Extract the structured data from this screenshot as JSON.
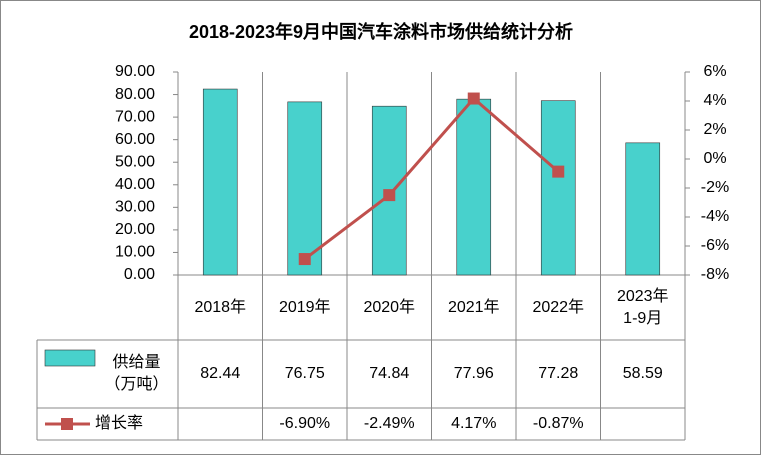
{
  "chart_data": {
    "type": "bar",
    "title": "2018-2023年9月中国汽车涂料市场供给统计分析",
    "categories": [
      "2018年",
      "2019年",
      "2020年",
      "2021年",
      "2022年",
      "2023年1-9月"
    ],
    "series": [
      {
        "name": "供给量（万吨）",
        "type": "bar",
        "color": "#48D1CC",
        "values": [
          82.44,
          76.75,
          74.84,
          77.96,
          77.28,
          58.59
        ]
      },
      {
        "name": "增长率",
        "type": "line",
        "axis": "y2",
        "color": "#C0504D",
        "values": [
          null,
          -6.9,
          -2.49,
          4.17,
          -0.87,
          null
        ],
        "value_labels": [
          null,
          "-6.90%",
          "-2.49%",
          "4.17%",
          "-0.87%",
          null
        ]
      }
    ],
    "ylim": [
      0,
      90
    ],
    "yticks": [
      {
        "value": 0,
        "label": "0.00"
      },
      {
        "value": 10,
        "label": "10.00"
      },
      {
        "value": 20,
        "label": "20.00"
      },
      {
        "value": 30,
        "label": "30.00"
      },
      {
        "value": 40,
        "label": "40.00"
      },
      {
        "value": 50,
        "label": "50.00"
      },
      {
        "value": 60,
        "label": "60.00"
      },
      {
        "value": 70,
        "label": "70.00"
      },
      {
        "value": 80,
        "label": "80.00"
      },
      {
        "value": 90,
        "label": "90.00"
      }
    ],
    "y2lim": [
      -8,
      6
    ],
    "y2ticks": [
      {
        "value": -8,
        "label": "-8%"
      },
      {
        "value": -6,
        "label": "-6%"
      },
      {
        "value": -4,
        "label": "-4%"
      },
      {
        "value": -2,
        "label": "-2%"
      },
      {
        "value": 0,
        "label": "0%"
      },
      {
        "value": 2,
        "label": "2%"
      },
      {
        "value": 4,
        "label": "4%"
      },
      {
        "value": 6,
        "label": "6%"
      }
    ],
    "grid": false
  }
}
